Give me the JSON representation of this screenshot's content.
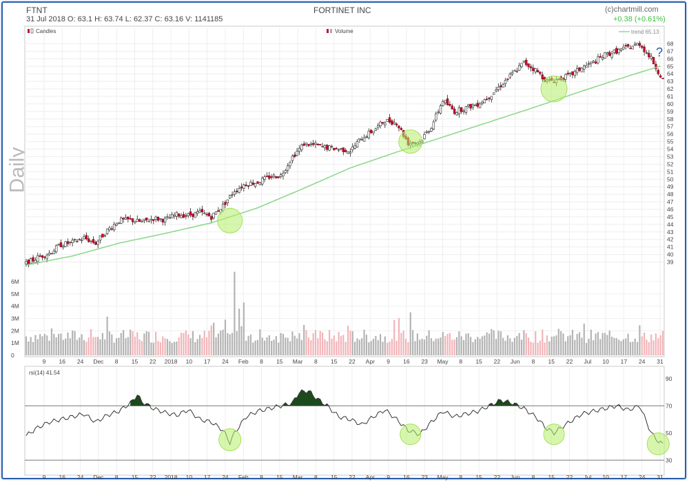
{
  "header": {
    "ticker": "FTNT",
    "ohlc": "31 Jul 2018   O: 63.1   H: 63.74   L: 62.37   C: 63.16   V: 1141185",
    "company": "FORTINET INC",
    "brand": "(c)chartmill.com",
    "change": "+0.38 (+0.61%)",
    "period_label": "Daily"
  },
  "colors": {
    "up_candle": "#ffffff",
    "down_candle": "#c8102e",
    "trend": "#8fd88f",
    "rsi_line": "#333333",
    "overbought_fill": "#1d4a1d",
    "highlight": "#b6ee6a",
    "question_mark": "#2a5fa8"
  },
  "legends": {
    "candles": "Candles",
    "volume": "Volume",
    "trend": "trend 65.13",
    "rsi": "rsi(14) 41.54"
  },
  "annotation": "?",
  "chart_data": [
    {
      "type": "line",
      "name": "price",
      "ylim": [
        38.5,
        68.5
      ],
      "y_ticks": [
        39,
        40,
        41,
        42,
        43,
        44,
        45,
        46,
        47,
        48,
        49,
        50,
        51,
        52,
        53,
        54,
        55,
        56,
        57,
        58,
        59,
        60,
        61,
        62,
        63,
        64,
        65,
        66,
        67,
        68
      ],
      "x_tick_labels": [
        "9",
        "16",
        "24",
        "Dec",
        "8",
        "15",
        "22",
        "2018",
        "10",
        "17",
        "24",
        "Feb",
        "8",
        "15",
        "Mar",
        "8",
        "15",
        "22",
        "Apr",
        "9",
        "16",
        "23",
        "May",
        "8",
        "15",
        "22",
        "Jun",
        "8",
        "15",
        "22",
        "Jul",
        "10",
        "17",
        "24",
        "31"
      ],
      "price_points": [
        [
          0,
          38.8
        ],
        [
          5,
          39.6
        ],
        [
          10,
          40.2
        ],
        [
          15,
          41.3
        ],
        [
          20,
          41.6
        ],
        [
          25,
          42.2
        ],
        [
          30,
          41.5
        ],
        [
          35,
          43.2
        ],
        [
          40,
          44.5
        ],
        [
          45,
          44.6
        ],
        [
          50,
          44.3
        ],
        [
          55,
          44.8
        ],
        [
          60,
          44.6
        ],
        [
          65,
          45.3
        ],
        [
          70,
          45.2
        ],
        [
          75,
          45.6
        ],
        [
          80,
          45.0
        ],
        [
          85,
          46.5
        ],
        [
          90,
          48.5
        ],
        [
          95,
          49.4
        ],
        [
          100,
          49.6
        ],
        [
          105,
          50.3
        ],
        [
          110,
          50.5
        ],
        [
          115,
          53.0
        ],
        [
          120,
          54.7
        ],
        [
          125,
          54.5
        ],
        [
          130,
          54.2
        ],
        [
          135,
          54.0
        ],
        [
          140,
          53.8
        ],
        [
          145,
          55.5
        ],
        [
          150,
          56.5
        ],
        [
          155,
          57.8
        ],
        [
          160,
          57.5
        ],
        [
          165,
          54.8
        ],
        [
          170,
          55.0
        ],
        [
          175,
          57.0
        ],
        [
          180,
          60.5
        ],
        [
          185,
          59.0
        ],
        [
          190,
          59.5
        ],
        [
          195,
          60.0
        ],
        [
          200,
          61.0
        ],
        [
          205,
          62.5
        ],
        [
          210,
          64.0
        ],
        [
          215,
          65.5
        ],
        [
          220,
          64.5
        ],
        [
          225,
          63.0
        ],
        [
          230,
          63.3
        ],
        [
          235,
          63.8
        ],
        [
          240,
          64.8
        ],
        [
          245,
          65.5
        ],
        [
          250,
          66.5
        ],
        [
          255,
          67.0
        ],
        [
          260,
          67.5
        ],
        [
          265,
          68.0
        ],
        [
          270,
          66.0
        ],
        [
          275,
          63.2
        ]
      ],
      "trend_points": [
        [
          0,
          38.6
        ],
        [
          20,
          39.8
        ],
        [
          40,
          41.5
        ],
        [
          60,
          42.8
        ],
        [
          80,
          44.2
        ],
        [
          100,
          46.2
        ],
        [
          120,
          48.8
        ],
        [
          140,
          51.5
        ],
        [
          160,
          53.6
        ],
        [
          180,
          55.6
        ],
        [
          200,
          57.6
        ],
        [
          220,
          59.6
        ],
        [
          240,
          61.7
        ],
        [
          260,
          63.7
        ],
        [
          275,
          65.13
        ]
      ],
      "trend_label": "trend 65.13"
    },
    {
      "type": "bar",
      "name": "volume",
      "ylim": [
        0,
        6500000
      ],
      "y_tick_labels": [
        "0",
        "1M",
        "2M",
        "3M",
        "4M",
        "5M",
        "6M"
      ],
      "peak": 6800000,
      "typical_range": [
        1000000,
        2000000
      ]
    },
    {
      "type": "line",
      "name": "rsi(14)",
      "value": 41.54,
      "ylim": [
        20,
        95
      ],
      "y_ticks": [
        30,
        50,
        70,
        90
      ],
      "levels": [
        30,
        70
      ],
      "rsi_points": [
        [
          0,
          48
        ],
        [
          5,
          54
        ],
        [
          10,
          58
        ],
        [
          15,
          60
        ],
        [
          20,
          62
        ],
        [
          25,
          64
        ],
        [
          30,
          58
        ],
        [
          35,
          63
        ],
        [
          40,
          66
        ],
        [
          45,
          72
        ],
        [
          48,
          78
        ],
        [
          50,
          73
        ],
        [
          55,
          68
        ],
        [
          60,
          65
        ],
        [
          65,
          63
        ],
        [
          70,
          67
        ],
        [
          75,
          60
        ],
        [
          80,
          58
        ],
        [
          85,
          52
        ],
        [
          88,
          43
        ],
        [
          90,
          50
        ],
        [
          95,
          62
        ],
        [
          100,
          66
        ],
        [
          105,
          68
        ],
        [
          110,
          70
        ],
        [
          115,
          72
        ],
        [
          118,
          80
        ],
        [
          122,
          81
        ],
        [
          125,
          76
        ],
        [
          130,
          70
        ],
        [
          135,
          62
        ],
        [
          140,
          60
        ],
        [
          145,
          56
        ],
        [
          150,
          62
        ],
        [
          155,
          67
        ],
        [
          160,
          60
        ],
        [
          165,
          52
        ],
        [
          170,
          49
        ],
        [
          175,
          58
        ],
        [
          180,
          66
        ],
        [
          185,
          62
        ],
        [
          190,
          64
        ],
        [
          195,
          66
        ],
        [
          200,
          70
        ],
        [
          205,
          74
        ],
        [
          210,
          72
        ],
        [
          215,
          68
        ],
        [
          220,
          62
        ],
        [
          225,
          53
        ],
        [
          228,
          50
        ],
        [
          232,
          55
        ],
        [
          240,
          64
        ],
        [
          245,
          66
        ],
        [
          250,
          68
        ],
        [
          255,
          70
        ],
        [
          260,
          67
        ],
        [
          265,
          70
        ],
        [
          270,
          50
        ],
        [
          273,
          44
        ],
        [
          275,
          41.5
        ]
      ]
    }
  ]
}
